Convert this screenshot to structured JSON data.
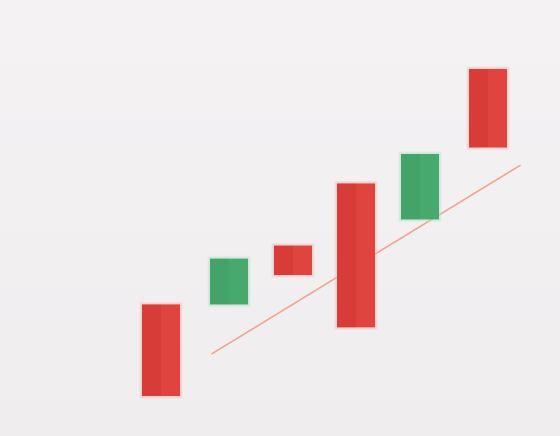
{
  "colors": {
    "background": "#f2f0f1",
    "red_body": "#e0443f",
    "red_dark": "#c62f2c",
    "green_body": "#47a96c",
    "trendline": "#f0a58e"
  },
  "chart_data": {
    "type": "candlestick",
    "title": "",
    "xlabel": "",
    "ylabel": "",
    "ylim": [
      0,
      100
    ],
    "grid": false,
    "legend": "none",
    "candles": [
      {
        "open": 12,
        "close": 40,
        "color": "red"
      },
      {
        "open": 40,
        "close": 54,
        "color": "green"
      },
      {
        "open": 58,
        "close": 49,
        "color": "red"
      },
      {
        "open": 33,
        "close": 77,
        "color": "red"
      },
      {
        "open": 66,
        "close": 86,
        "color": "green"
      },
      {
        "open": 88,
        "close": 112,
        "color": "red"
      }
    ],
    "trendline": {
      "from": {
        "index": 1,
        "value": 28
      },
      "to": {
        "index": 5,
        "value": 77
      }
    }
  }
}
